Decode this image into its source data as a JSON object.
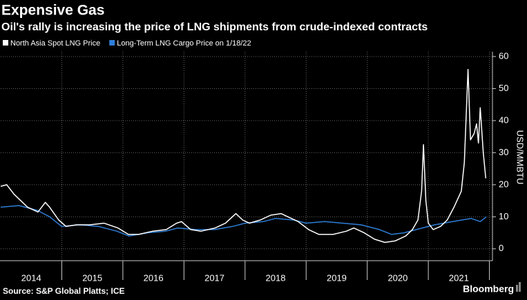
{
  "chart_data": {
    "type": "line",
    "title": "Expensive Gas",
    "subtitle": "Oil's rally is increasing the price of LNG shipments from crude-indexed contracts",
    "y_label": "USD/MMBTU",
    "source": "Source: S&P Global Platts; ICE",
    "brand": "Bloomberg",
    "series": [
      {
        "name": "North Asia Spot LNG Price",
        "color": "#ffffff",
        "x": [
          2014.0,
          2014.1,
          2014.22,
          2014.44,
          2014.61,
          2014.73,
          2014.8,
          2014.95,
          2015.07,
          2015.24,
          2015.46,
          2015.69,
          2015.92,
          2016.09,
          2016.26,
          2016.49,
          2016.71,
          2016.88,
          2016.96,
          2017.11,
          2017.28,
          2017.51,
          2017.68,
          2017.85,
          2017.96,
          2018.07,
          2018.25,
          2018.42,
          2018.59,
          2018.7,
          2018.87,
          2019.04,
          2019.21,
          2019.44,
          2019.66,
          2019.78,
          2019.95,
          2020.12,
          2020.29,
          2020.46,
          2020.63,
          2020.74,
          2020.83,
          2020.89,
          2020.92,
          2020.96,
          2021.0,
          2021.08,
          2021.2,
          2021.31,
          2021.42,
          2021.54,
          2021.59,
          2021.65,
          2021.69,
          2021.75,
          2021.79,
          2021.82,
          2021.85,
          2021.9,
          2021.94
        ],
        "values": [
          19.5,
          20,
          17,
          13,
          11.5,
          14.5,
          13,
          9,
          7,
          7.5,
          7.5,
          8,
          6.5,
          4.5,
          4.5,
          5.5,
          6,
          8,
          8.5,
          6,
          5.5,
          6.5,
          8,
          11,
          9,
          8,
          9,
          10.5,
          11,
          10,
          8.5,
          6,
          4.5,
          4.5,
          5.5,
          6.5,
          5,
          3,
          2,
          2.5,
          4,
          6,
          9,
          18,
          32.5,
          15,
          8,
          6,
          7,
          9,
          13,
          18,
          27,
          56,
          34,
          36,
          39,
          33,
          44,
          30,
          22
        ]
      },
      {
        "name": "Long-Term LNG Cargo Price on 1/18/22",
        "color": "#2f7ed8",
        "x": [
          2014.0,
          2014.3,
          2014.6,
          2014.8,
          2015.0,
          2015.3,
          2015.6,
          2015.9,
          2016.1,
          2016.4,
          2016.7,
          2016.9,
          2017.2,
          2017.5,
          2017.8,
          2018.0,
          2018.3,
          2018.5,
          2018.8,
          2019.0,
          2019.3,
          2019.6,
          2019.9,
          2020.2,
          2020.4,
          2020.6,
          2020.9,
          2021.1,
          2021.4,
          2021.7,
          2021.85,
          2021.95
        ],
        "values": [
          13,
          13.5,
          12,
          10,
          7,
          7.5,
          7,
          5.5,
          4,
          5,
          5.5,
          6.5,
          6,
          6,
          7,
          8,
          8.5,
          9.5,
          9,
          8,
          8.5,
          8,
          7.5,
          6,
          4.5,
          5,
          6.5,
          7.5,
          8.5,
          9.5,
          8.5,
          10
        ]
      }
    ],
    "xlim": [
      2014.0,
      2022.05
    ],
    "xticks": [
      {
        "value": 2014.5,
        "label": "2014"
      },
      {
        "value": 2015.5,
        "label": "2015"
      },
      {
        "value": 2016.5,
        "label": "2016"
      },
      {
        "value": 2017.5,
        "label": "2017"
      },
      {
        "value": 2018.5,
        "label": "2018"
      },
      {
        "value": 2019.5,
        "label": "2019"
      },
      {
        "value": 2020.5,
        "label": "2020"
      },
      {
        "value": 2021.5,
        "label": "2021"
      }
    ],
    "xgrid": [
      2015,
      2016,
      2017,
      2018,
      2019,
      2020,
      2021,
      2022
    ],
    "ylim": [
      -3.7,
      61.5
    ],
    "yticks": [
      0,
      10,
      20,
      30,
      40,
      50,
      60
    ],
    "grid": true
  }
}
